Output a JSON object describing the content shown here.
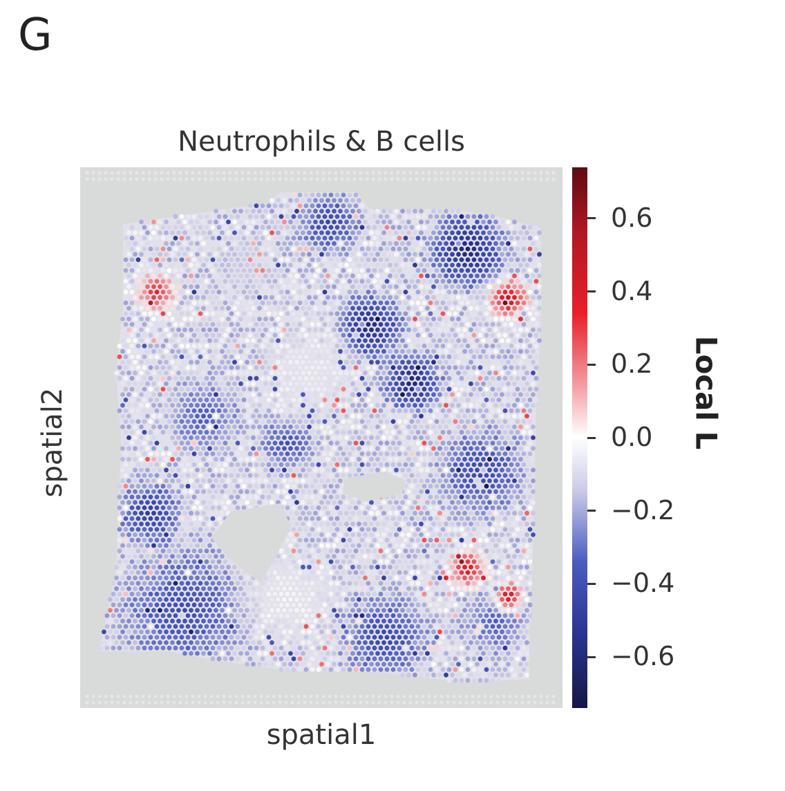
{
  "panel_letter": "G",
  "chart_data": {
    "type": "scatter",
    "title": "Neutrophils & B cells",
    "xlabel": "spatial1",
    "ylabel": "spatial2",
    "colorbar": {
      "label": "Local L",
      "ticks": [
        {
          "value": 0.6,
          "label": "0.6"
        },
        {
          "value": 0.4,
          "label": "0.4"
        },
        {
          "value": 0.2,
          "label": "0.2"
        },
        {
          "value": 0.0,
          "label": "0.0"
        },
        {
          "value": -0.2,
          "label": "−0.2"
        },
        {
          "value": -0.4,
          "label": "−0.4"
        },
        {
          "value": -0.6,
          "label": "−0.6"
        }
      ],
      "range": [
        -0.74,
        0.74
      ],
      "colormap": "seismic"
    },
    "colors": {
      "high": "#b01822",
      "mid": "#ffffff",
      "low": "#151645",
      "background": "#d9dada"
    },
    "grid": false,
    "axis_ticks": false
  }
}
